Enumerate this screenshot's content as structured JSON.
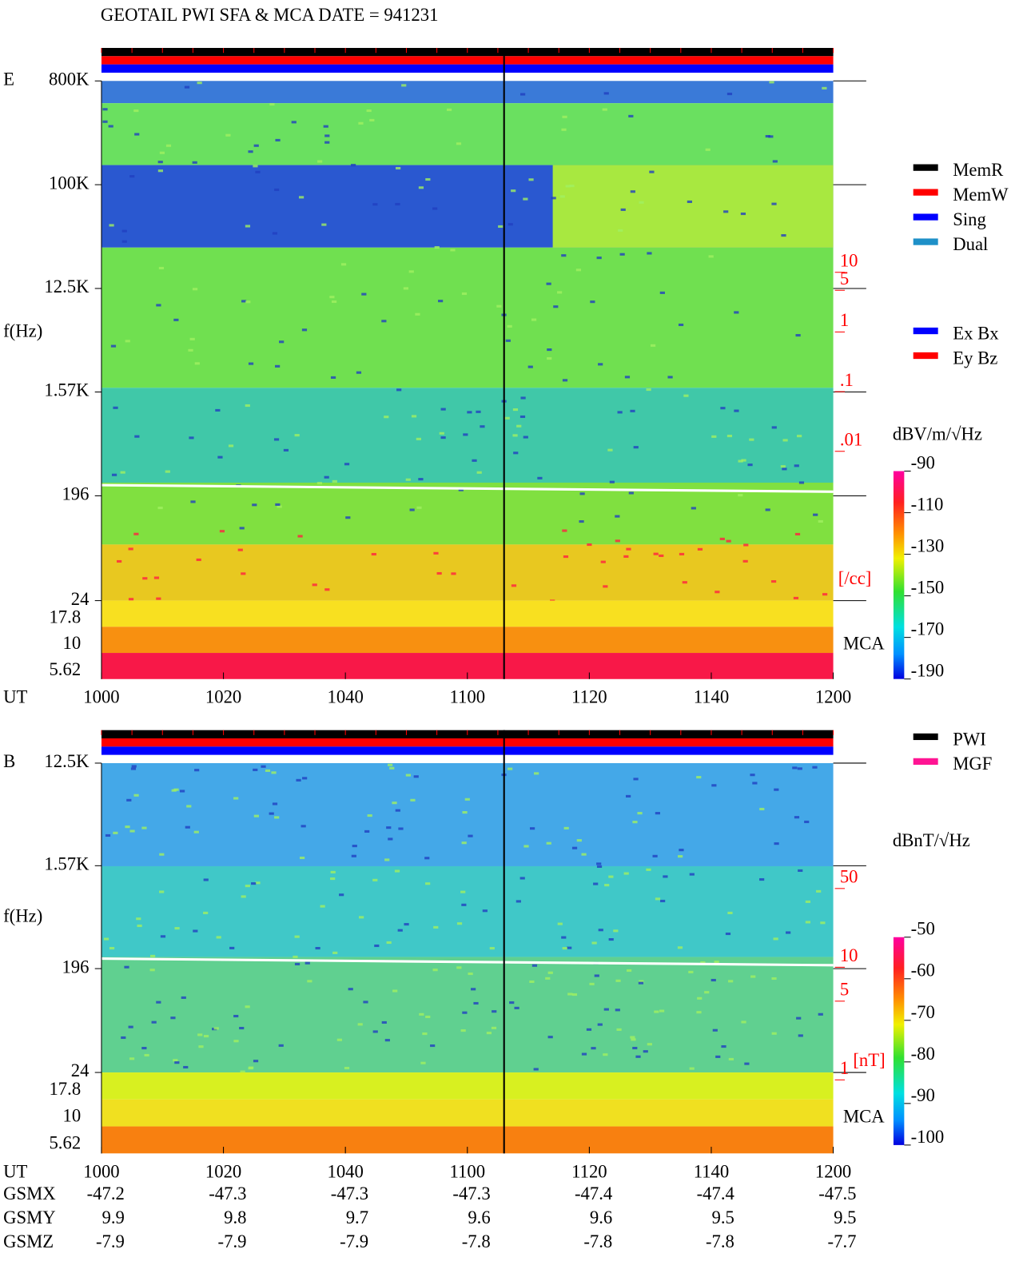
{
  "title": "GEOTAIL  PWI SFA & MCA   DATE = 941231",
  "chart_data": [
    {
      "type": "spectrogram",
      "panel_label": "E",
      "ylabel": "f(Hz)",
      "xlabel": "UT",
      "log_y": true,
      "ylim": [
        24,
        800000
      ],
      "yticks": [
        {
          "value": 800000,
          "label": "800K"
        },
        {
          "value": 100000,
          "label": "100K"
        },
        {
          "value": 12500,
          "label": "12.5K"
        },
        {
          "value": 1570,
          "label": "1.57K"
        },
        196,
        24
      ],
      "mca_label": "MCA",
      "mca_channels": [
        17.8,
        10,
        5.62
      ],
      "x_categories": [
        "1000",
        "1020",
        "1040",
        "1100",
        "1120",
        "1140",
        "1200"
      ],
      "colorbar_label": "dBV/m/√Hz",
      "clim": [
        -190,
        -90
      ],
      "cticks": [
        -90,
        -110,
        -130,
        -150,
        -170,
        -190
      ],
      "density_lim": [
        0.01,
        10
      ],
      "density_ticks": [
        10,
        5,
        1,
        {
          "value": 0.1,
          "label": ".1"
        },
        {
          "value": 0.01,
          "label": ".01"
        }
      ],
      "density_unit": "[/cc]",
      "legend": [
        {
          "name": "MemR",
          "color": "#000000"
        },
        {
          "name": "MemW",
          "color": "#ff0000"
        },
        {
          "name": "Sing",
          "color": "#0000ff"
        },
        {
          "name": "Dual",
          "color": "#1e90c8"
        }
      ],
      "legend2": [
        {
          "name": "Ex Bx",
          "color": "#0000ff"
        },
        {
          "name": "Ey Bz",
          "color": "#ff0000"
        }
      ]
    },
    {
      "type": "spectrogram",
      "panel_label": "B",
      "ylabel": "f(Hz)",
      "xlabel": "UT",
      "log_y": true,
      "ylim": [
        24,
        12500
      ],
      "yticks": [
        {
          "value": 12500,
          "label": "12.5K"
        },
        {
          "value": 1570,
          "label": "1.57K"
        },
        196,
        24
      ],
      "mca_label": "MCA",
      "mca_channels": [
        17.8,
        10,
        5.62
      ],
      "x_categories": [
        "1000",
        "1020",
        "1040",
        "1100",
        "1120",
        "1140",
        "1200"
      ],
      "colorbar_label": "dBnT/√Hz",
      "clim": [
        -100,
        -50
      ],
      "cticks": [
        -50,
        -60,
        -70,
        -80,
        -90,
        -100
      ],
      "density_lim": [
        1,
        50
      ],
      "density_ticks": [
        50,
        10,
        5,
        1
      ],
      "density_unit": "[nT]",
      "legend": [
        {
          "name": "PWI",
          "color": "#000000"
        },
        {
          "name": "MGF",
          "color": "#ff1493"
        }
      ]
    }
  ],
  "orbit": {
    "rows": [
      {
        "name": "GSMX",
        "values": [
          -47.2,
          -47.3,
          -47.3,
          -47.3,
          -47.4,
          -47.4,
          -47.5
        ]
      },
      {
        "name": "GSMY",
        "values": [
          9.9,
          9.8,
          9.7,
          9.6,
          9.6,
          9.5,
          9.5
        ]
      },
      {
        "name": "GSMZ",
        "values": [
          -7.9,
          -7.9,
          -7.9,
          -7.8,
          -7.8,
          -7.8,
          -7.7
        ]
      }
    ]
  }
}
